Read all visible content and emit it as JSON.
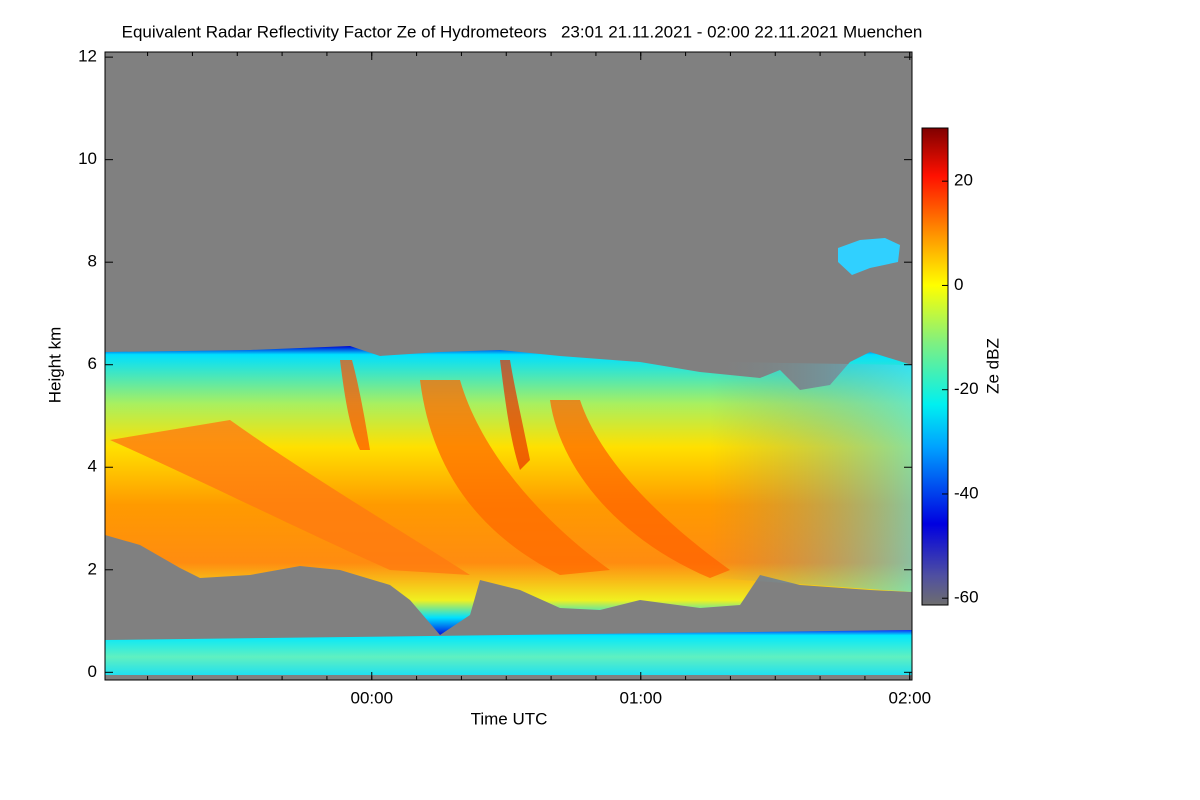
{
  "chart_data": {
    "type": "heatmap",
    "title": "Equivalent Radar Reflectivity Factor Ze of Hydrometeors   23:01 21.11.2021 - 02:00 22.11.2021 Muenchen",
    "x_label": "Time UTC",
    "y_label": "Height km",
    "colorbar_label": "Ze dBZ",
    "xlim": [
      -59.5,
      120.5
    ],
    "xticks": [
      {
        "value": 0,
        "label": "00:00"
      },
      {
        "value": 60,
        "label": "01:00"
      },
      {
        "value": 120,
        "label": "02:00"
      }
    ],
    "ylim": [
      -0.15,
      12.1
    ],
    "yticks": [
      0,
      2,
      4,
      6,
      8,
      10,
      12
    ],
    "clim": [
      -61.3,
      30.2
    ],
    "cticks": [
      -60,
      -40,
      -20,
      0,
      20
    ]
  }
}
